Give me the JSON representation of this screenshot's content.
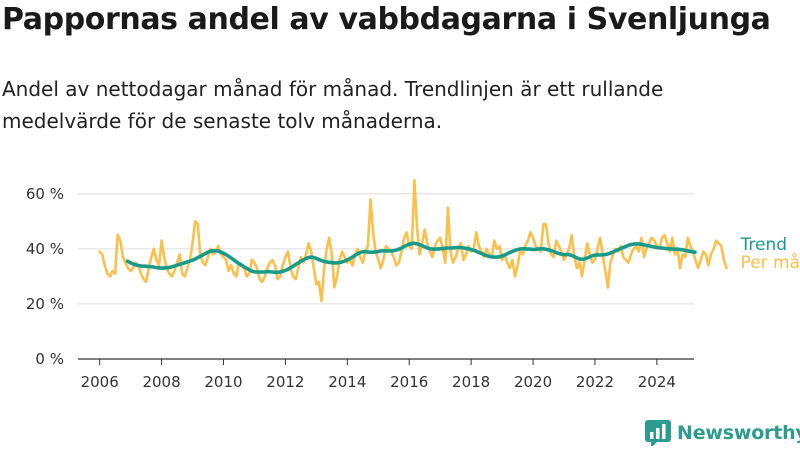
{
  "title": "Pappornas andel av vabbdagarna i Svenljunga",
  "subtitle": "Andel av nettodagar månad för månad. Trendlinjen är ett rullande medelvärde för de senaste tolv månaderna.",
  "brand": {
    "name": "Newsworthy",
    "icon": "bar-chart-logo-icon",
    "color": "#2d9b8e"
  },
  "chart_data": {
    "type": "line",
    "ylim": [
      0,
      65
    ],
    "yticks": [
      0,
      20,
      40,
      60
    ],
    "ytick_labels": [
      "0 %",
      "20 %",
      "40 %",
      "60 %"
    ],
    "xlim": [
      2005.3,
      2025.2
    ],
    "xticks": [
      2006,
      2008,
      2010,
      2012,
      2014,
      2016,
      2018,
      2020,
      2022,
      2024
    ],
    "xtick_labels": [
      "2006",
      "2008",
      "2010",
      "2012",
      "2014",
      "2016",
      "2018",
      "2020",
      "2022",
      "2024"
    ],
    "grid": true,
    "legend": "direct labels at right end",
    "series": [
      {
        "name": "Per månad",
        "color": "#f9c04c",
        "start": 2006.0,
        "step_months": 1,
        "values": [
          39,
          38,
          34,
          31,
          30,
          32,
          31,
          45,
          43,
          37,
          35,
          33,
          32,
          33,
          35,
          34,
          31,
          29,
          28,
          33,
          37,
          40,
          36,
          34,
          43,
          37,
          33,
          31,
          30,
          32,
          35,
          38,
          31,
          30,
          33,
          36,
          42,
          50,
          49,
          38,
          35,
          34,
          37,
          40,
          38,
          39,
          41,
          38,
          37,
          36,
          32,
          34,
          31,
          30,
          35,
          34,
          33,
          30,
          31,
          36,
          35,
          33,
          29,
          28,
          30,
          33,
          35,
          36,
          34,
          29,
          30,
          34,
          37,
          39,
          33,
          30,
          29,
          33,
          37,
          35,
          38,
          42,
          39,
          33,
          27,
          28,
          21,
          33,
          40,
          44,
          38,
          26,
          30,
          36,
          39,
          37,
          35,
          36,
          34,
          38,
          40,
          37,
          35,
          39,
          41,
          58,
          46,
          39,
          36,
          33,
          36,
          41,
          40,
          39,
          37,
          34,
          35,
          39,
          44,
          46,
          41,
          40,
          65,
          48,
          38,
          42,
          47,
          42,
          39,
          37,
          41,
          43,
          44,
          40,
          35,
          55,
          39,
          35,
          37,
          40,
          42,
          36,
          38,
          41,
          39,
          40,
          46,
          41,
          39,
          37,
          40,
          38,
          37,
          43,
          40,
          41,
          36,
          38,
          35,
          33,
          36,
          30,
          34,
          39,
          38,
          41,
          43,
          46,
          44,
          41,
          40,
          39,
          49,
          49,
          42,
          38,
          37,
          43,
          41,
          39,
          36,
          38,
          40,
          45,
          37,
          33,
          35,
          30,
          36,
          42,
          38,
          35,
          36,
          40,
          44,
          38,
          32,
          26,
          35,
          38,
          40,
          39,
          41,
          37,
          36,
          35,
          38,
          40,
          41,
          39,
          44,
          37,
          40,
          42,
          44,
          43,
          41,
          40,
          44,
          45,
          42,
          39,
          44,
          38,
          40,
          33,
          38,
          37,
          44,
          41,
          39,
          36,
          33,
          36,
          39,
          38,
          34,
          38,
          40,
          43,
          42,
          41,
          36,
          33
        ]
      },
      {
        "name": "Trend",
        "color": "#1a9b8a",
        "start": 2006.9,
        "step_months": 1,
        "values": [
          35.5,
          35,
          34.6,
          34.2,
          34,
          33.8,
          33.7,
          33.7,
          33.6,
          33.5,
          33.4,
          33.2,
          33.1,
          33,
          33,
          33.1,
          33.2,
          33.4,
          33.7,
          34,
          34.3,
          34.6,
          34.9,
          35.2,
          35.5,
          35.8,
          36.2,
          36.7,
          37.2,
          37.7,
          38.2,
          38.7,
          39.1,
          39.3,
          39.3,
          39.2,
          38.9,
          38.5,
          38,
          37.4,
          36.8,
          36.1,
          35.4,
          34.8,
          34.2,
          33.6,
          33,
          32.5,
          32,
          31.7,
          31.6,
          31.6,
          31.6,
          31.6,
          31.7,
          31.7,
          31.6,
          31.5,
          31.5,
          31.6,
          31.8,
          32.1,
          32.5,
          33,
          33.6,
          34.2,
          34.8,
          35.4,
          35.9,
          36.4,
          36.8,
          37,
          36.9,
          36.6,
          36.2,
          35.8,
          35.5,
          35.3,
          35.1,
          35,
          34.9,
          34.9,
          35,
          35.2,
          35.5,
          35.9,
          36.4,
          36.9,
          37.5,
          38.1,
          38.6,
          38.9,
          39,
          38.9,
          38.8,
          38.8,
          38.9,
          39,
          39.2,
          39.3,
          39.3,
          39.2,
          39.2,
          39.3,
          39.5,
          39.8,
          40.2,
          40.7,
          41.2,
          41.6,
          41.9,
          42,
          41.9,
          41.6,
          41.2,
          40.8,
          40.4,
          40.1,
          39.9,
          39.9,
          39.9,
          40,
          40.1,
          40.2,
          40.3,
          40.3,
          40.3,
          40.4,
          40.5,
          40.5,
          40.4,
          40.2,
          40,
          39.8,
          39.5,
          39.2,
          38.8,
          38.4,
          38,
          37.6,
          37.3,
          37.1,
          37,
          37,
          37.1,
          37.3,
          37.7,
          38.1,
          38.6,
          39,
          39.4,
          39.7,
          39.9,
          40,
          40,
          39.9,
          39.9,
          39.8,
          39.8,
          39.9,
          40,
          40,
          39.9,
          39.7,
          39.4,
          39.1,
          38.7,
          38.4,
          38.1,
          37.9,
          37.9,
          37.9,
          37.7,
          37.3,
          36.8,
          36.4,
          36.2,
          36.3,
          36.6,
          37,
          37.4,
          37.7,
          37.8,
          37.8,
          37.8,
          37.9,
          38.1,
          38.4,
          38.8,
          39.2,
          39.6,
          40,
          40.4,
          40.8,
          41.2,
          41.5,
          41.7,
          41.8,
          41.8,
          41.7,
          41.5,
          41.3,
          41.1,
          40.9,
          40.7,
          40.5,
          40.4,
          40.3,
          40.2,
          40.1,
          40,
          39.9,
          39.9,
          39.9,
          39.8,
          39.7,
          39.5,
          39.3,
          39.1,
          38.9,
          38.8
        ]
      }
    ]
  }
}
